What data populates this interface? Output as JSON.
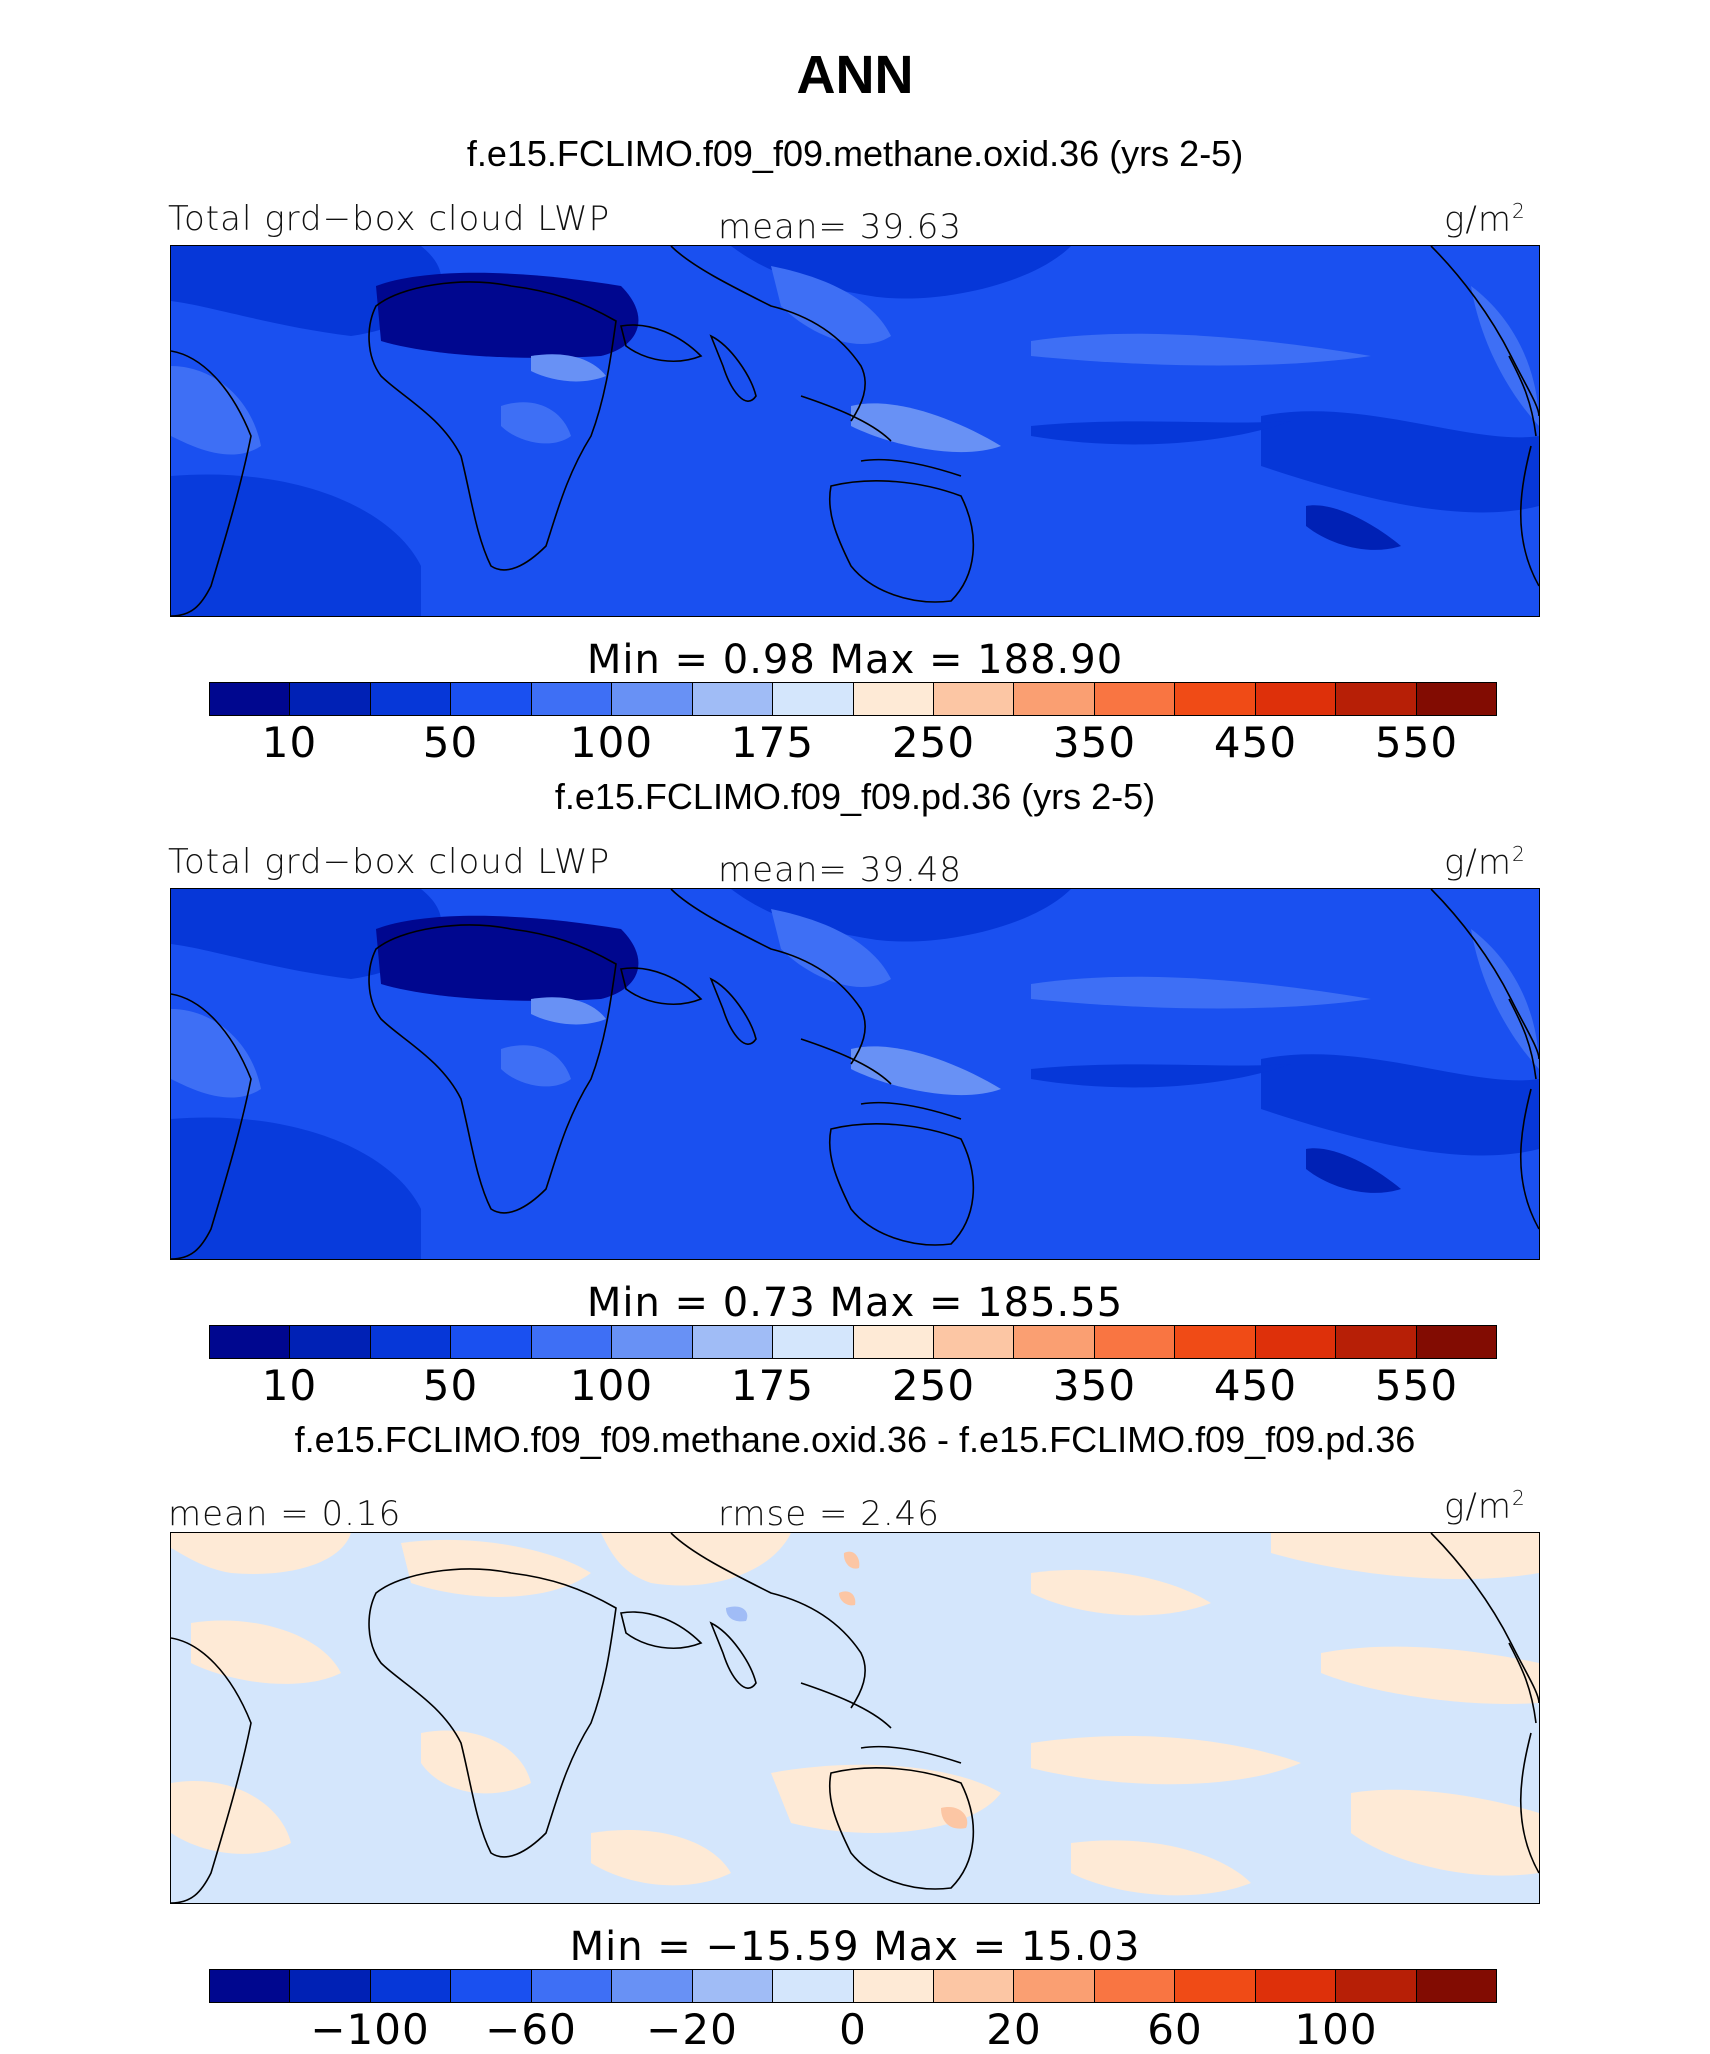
{
  "title": "ANN",
  "panels": [
    {
      "case_title": "f.e15.FCLIMO.f09_f09.methane.oxid.36 (yrs 2-5)",
      "left_label": "Total grd−box cloud LWP",
      "center_label": "mean=   39.63",
      "unit": "g/m",
      "unit_sup": "2",
      "minmax": "Min =    0.98  Max =  188.90",
      "colorbar": {
        "colors": [
          "#00078f",
          "#0021b5",
          "#0637d8",
          "#1a50f0",
          "#3e6ff5",
          "#6891f5",
          "#a0bcf6",
          "#d4e6fc",
          "#feead6",
          "#fcc6a4",
          "#fa9f72",
          "#f97542",
          "#f04b16",
          "#de300a",
          "#b71f06",
          "#820c02"
        ],
        "tick_labels": [
          "10",
          "50",
          "100",
          "175",
          "250",
          "350",
          "450",
          "550"
        ]
      }
    },
    {
      "case_title": "f.e15.FCLIMO.f09_f09.pd.36 (yrs 2-5)",
      "left_label": "Total grd−box cloud LWP",
      "center_label": "mean=   39.48",
      "unit": "g/m",
      "unit_sup": "2",
      "minmax": "Min =    0.73  Max =  185.55",
      "colorbar": {
        "colors": [
          "#00078f",
          "#0021b5",
          "#0637d8",
          "#1a50f0",
          "#3e6ff5",
          "#6891f5",
          "#a0bcf6",
          "#d4e6fc",
          "#feead6",
          "#fcc6a4",
          "#fa9f72",
          "#f97542",
          "#f04b16",
          "#de300a",
          "#b71f06",
          "#820c02"
        ],
        "tick_labels": [
          "10",
          "50",
          "100",
          "175",
          "250",
          "350",
          "450",
          "550"
        ]
      }
    },
    {
      "case_title": "f.e15.FCLIMO.f09_f09.methane.oxid.36 - f.e15.FCLIMO.f09_f09.pd.36",
      "left_label": "mean =   0.16",
      "center_label": "rmse =   2.46",
      "unit": "g/m",
      "unit_sup": "2",
      "minmax": "Min = −15.59  Max =   15.03",
      "colorbar": {
        "colors": [
          "#00078f",
          "#0021b5",
          "#0637d8",
          "#1a50f0",
          "#3e6ff5",
          "#6891f5",
          "#a0bcf6",
          "#d4e6fc",
          "#feead6",
          "#fcc6a4",
          "#fa9f72",
          "#f97542",
          "#f04b16",
          "#de300a",
          "#b71f06",
          "#820c02"
        ],
        "tick_labels": [
          "−100",
          "−60",
          "−20",
          "0",
          "20",
          "60",
          "100"
        ]
      }
    }
  ]
}
